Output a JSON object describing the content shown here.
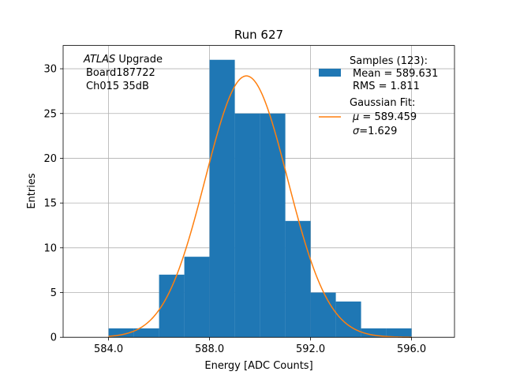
{
  "chart_data": {
    "type": "bar",
    "title": "Run 627",
    "xlabel": "Energy [ADC Counts]",
    "ylabel": "Entries",
    "xlim": [
      582.2,
      597.7
    ],
    "ylim": [
      0,
      32.6
    ],
    "grid": true,
    "xticks": [
      584,
      588,
      592,
      596
    ],
    "xtick_labels": [
      "584.0",
      "588.0",
      "592.0",
      "596.0"
    ],
    "yticks": [
      0,
      5,
      10,
      15,
      20,
      25,
      30
    ],
    "ytick_labels": [
      "0",
      "5",
      "10",
      "15",
      "20",
      "25",
      "30"
    ],
    "bin_edges": [
      584,
      585,
      586,
      587,
      588,
      589,
      590,
      591,
      592,
      593,
      594,
      595,
      596
    ],
    "counts": [
      1,
      1,
      7,
      9,
      31,
      25,
      25,
      13,
      5,
      4,
      1,
      1
    ],
    "histogram_color": "#1f77b4",
    "fit": {
      "mu": 589.459,
      "sigma": 1.629,
      "amplitude": 29.2,
      "color": "#ff7f0e"
    },
    "annotation": {
      "line1_italic": "ATLAS",
      "line1_rest": " Upgrade",
      "line2": "Board187722",
      "line3": "Ch015 35dB"
    },
    "legend": {
      "position": "top-right",
      "samples": {
        "title": "Samples (123):",
        "mean": "Mean = 589.631",
        "rms": "RMS = 1.811"
      },
      "fit": {
        "title": "Gaussian Fit:",
        "mu_symbol": "μ",
        "mu_rest": " = 589.459",
        "sigma_symbol": "σ",
        "sigma_rest": "=1.629"
      }
    }
  }
}
